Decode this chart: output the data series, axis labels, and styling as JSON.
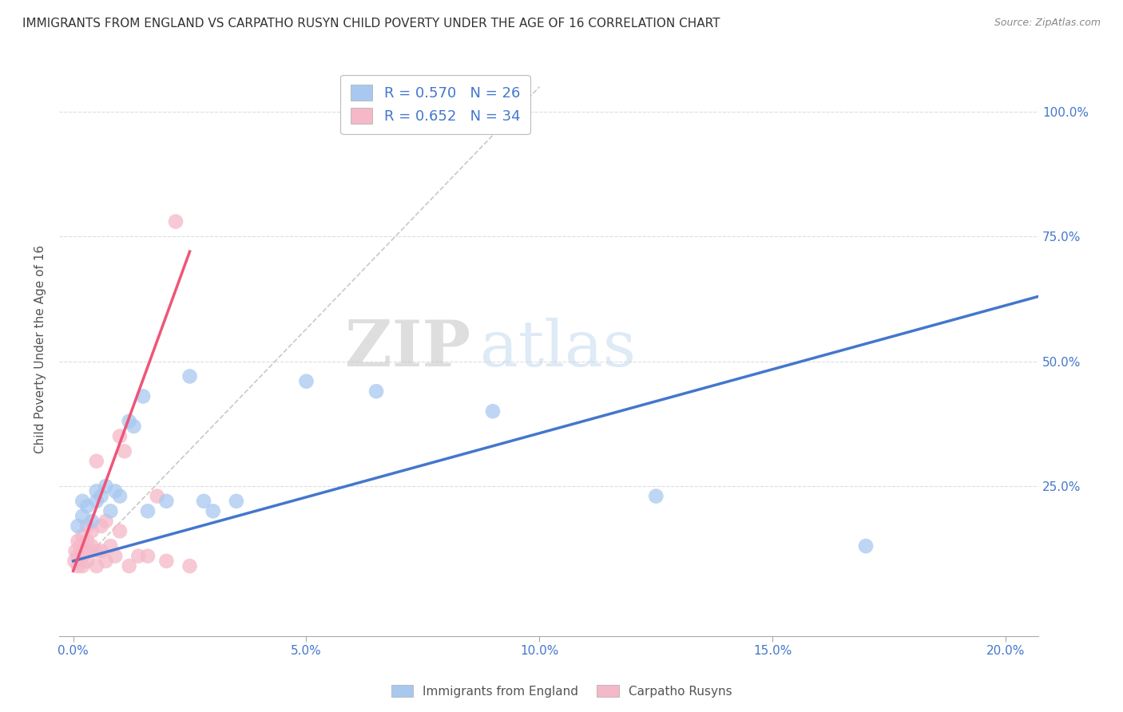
{
  "title": "IMMIGRANTS FROM ENGLAND VS CARPATHO RUSYN CHILD POVERTY UNDER THE AGE OF 16 CORRELATION CHART",
  "source": "Source: ZipAtlas.com",
  "ylabel": "Child Poverty Under the Age of 16",
  "xticklabels": [
    "0.0%",
    "5.0%",
    "10.0%",
    "15.0%",
    "20.0%"
  ],
  "xticks": [
    0.0,
    0.05,
    0.1,
    0.15,
    0.2
  ],
  "yticklabels": [
    "100.0%",
    "75.0%",
    "50.0%",
    "25.0%"
  ],
  "yticks": [
    1.0,
    0.75,
    0.5,
    0.25
  ],
  "xlim": [
    -0.003,
    0.207
  ],
  "ylim": [
    -0.05,
    1.1
  ],
  "blue_R": "R = 0.570",
  "blue_N": "N = 26",
  "pink_R": "R = 0.652",
  "pink_N": "N = 34",
  "blue_color": "#A8C8F0",
  "pink_color": "#F5B8C8",
  "blue_line_color": "#4477CC",
  "pink_line_color": "#EE5577",
  "grid_color": "#DDDDDD",
  "background_color": "#FFFFFF",
  "watermark_zip": "ZIP",
  "watermark_atlas": "atlas",
  "legend_label_blue": "Immigrants from England",
  "legend_label_pink": "Carpatho Rusyns",
  "blue_scatter_x": [
    0.001,
    0.002,
    0.002,
    0.003,
    0.004,
    0.005,
    0.005,
    0.006,
    0.007,
    0.008,
    0.009,
    0.01,
    0.012,
    0.013,
    0.015,
    0.016,
    0.02,
    0.025,
    0.028,
    0.03,
    0.035,
    0.05,
    0.065,
    0.09,
    0.125,
    0.17
  ],
  "blue_scatter_y": [
    0.17,
    0.19,
    0.22,
    0.21,
    0.18,
    0.22,
    0.24,
    0.23,
    0.25,
    0.2,
    0.24,
    0.23,
    0.38,
    0.37,
    0.43,
    0.2,
    0.22,
    0.47,
    0.22,
    0.2,
    0.22,
    0.46,
    0.44,
    0.4,
    0.23,
    0.13
  ],
  "pink_scatter_x": [
    0.0003,
    0.0005,
    0.001,
    0.001,
    0.001,
    0.0015,
    0.002,
    0.002,
    0.002,
    0.003,
    0.003,
    0.003,
    0.003,
    0.004,
    0.004,
    0.005,
    0.005,
    0.005,
    0.006,
    0.006,
    0.007,
    0.007,
    0.008,
    0.009,
    0.01,
    0.01,
    0.011,
    0.012,
    0.014,
    0.016,
    0.018,
    0.02,
    0.022,
    0.025
  ],
  "pink_scatter_y": [
    0.1,
    0.12,
    0.09,
    0.11,
    0.14,
    0.13,
    0.09,
    0.11,
    0.15,
    0.12,
    0.1,
    0.14,
    0.17,
    0.13,
    0.16,
    0.09,
    0.12,
    0.3,
    0.12,
    0.17,
    0.18,
    0.1,
    0.13,
    0.11,
    0.16,
    0.35,
    0.32,
    0.09,
    0.11,
    0.11,
    0.23,
    0.1,
    0.78,
    0.09
  ],
  "blue_line_x": [
    0.0,
    0.207
  ],
  "blue_line_y": [
    0.1,
    0.63
  ],
  "pink_line_x": [
    0.0,
    0.025
  ],
  "pink_line_y": [
    0.08,
    0.72
  ],
  "diag_line_x": [
    0.0,
    0.1
  ],
  "diag_line_y": [
    0.08,
    1.05
  ]
}
